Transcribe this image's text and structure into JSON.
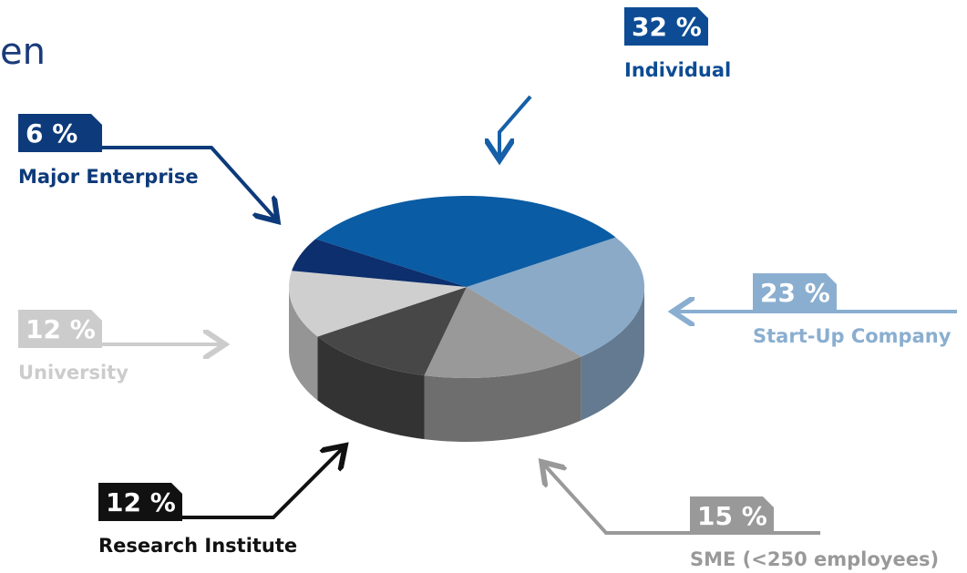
{
  "header_text": "en",
  "chart_data": {
    "type": "pie",
    "categories": [
      "Start-Up Company",
      "SME (<250 employees)",
      "Research Institute",
      "University",
      "Major Enterprise",
      "Individual"
    ],
    "values": [
      23,
      15,
      12,
      12,
      6,
      32
    ],
    "value_labels": [
      "23 %",
      "15 %",
      "12 %",
      "12 %",
      "6 %",
      "32 %"
    ],
    "colors": [
      "#8aaac8",
      "#999999",
      "#474747",
      "#cfcfcf",
      "#0d2f6e",
      "#0a5ca4"
    ]
  }
}
